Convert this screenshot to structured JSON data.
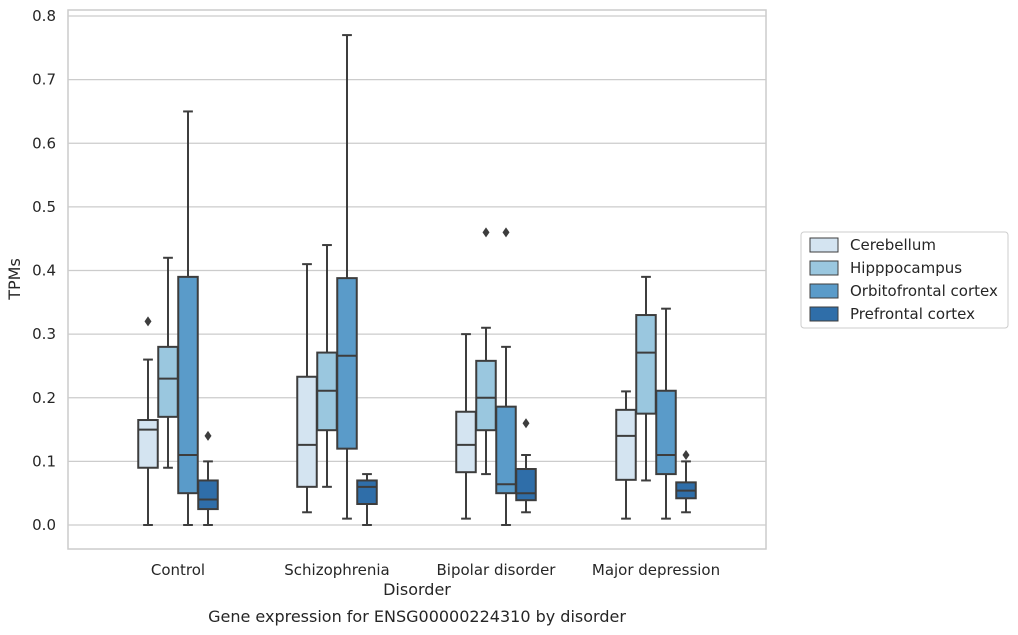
{
  "chart_data": {
    "type": "box",
    "title": "",
    "caption": "Gene expression for ENSG00000224310 by disorder",
    "xlabel": "Disorder",
    "ylabel": "TPMs",
    "ylim": [
      -0.038,
      0.812
    ],
    "yticks": [
      "0.0",
      "0.1",
      "0.2",
      "0.3",
      "0.4",
      "0.5",
      "0.6",
      "0.7",
      "0.8"
    ],
    "grid": "horizontal",
    "legend_position": "right",
    "categories": [
      "Control",
      "Schizophrenia",
      "Bipolar disorder",
      "Major depression"
    ],
    "series": [
      {
        "name": "Cerebellum",
        "color": "#d4e4f1",
        "boxes": [
          {
            "min": 0.0,
            "q1": 0.09,
            "median": 0.15,
            "q3": 0.165,
            "max": 0.26,
            "outliers": [
              0.32
            ]
          },
          {
            "min": 0.02,
            "q1": 0.06,
            "median": 0.126,
            "q3": 0.233,
            "max": 0.41,
            "outliers": []
          },
          {
            "min": 0.01,
            "q1": 0.083,
            "median": 0.126,
            "q3": 0.178,
            "max": 0.3,
            "outliers": []
          },
          {
            "min": 0.01,
            "q1": 0.071,
            "median": 0.14,
            "q3": 0.181,
            "max": 0.21,
            "outliers": []
          }
        ]
      },
      {
        "name": "Hipppocampus",
        "color": "#9ac7df",
        "boxes": [
          {
            "min": 0.09,
            "q1": 0.17,
            "median": 0.23,
            "q3": 0.28,
            "max": 0.42,
            "outliers": []
          },
          {
            "min": 0.06,
            "q1": 0.149,
            "median": 0.211,
            "q3": 0.271,
            "max": 0.44,
            "outliers": []
          },
          {
            "min": 0.08,
            "q1": 0.149,
            "median": 0.2,
            "q3": 0.258,
            "max": 0.31,
            "outliers": [
              0.46
            ]
          },
          {
            "min": 0.07,
            "q1": 0.175,
            "median": 0.271,
            "q3": 0.33,
            "max": 0.39,
            "outliers": []
          }
        ]
      },
      {
        "name": "Orbitofrontal cortex",
        "color": "#5a9bc9",
        "boxes": [
          {
            "min": 0.0,
            "q1": 0.05,
            "median": 0.11,
            "q3": 0.39,
            "max": 0.65,
            "outliers": []
          },
          {
            "min": 0.01,
            "q1": 0.12,
            "median": 0.266,
            "q3": 0.388,
            "max": 0.77,
            "outliers": []
          },
          {
            "min": 0.0,
            "q1": 0.05,
            "median": 0.064,
            "q3": 0.186,
            "max": 0.28,
            "outliers": [
              0.46
            ]
          },
          {
            "min": 0.01,
            "q1": 0.08,
            "median": 0.11,
            "q3": 0.211,
            "max": 0.34,
            "outliers": []
          }
        ]
      },
      {
        "name": "Prefrontal cortex",
        "color": "#2f6ea9",
        "boxes": [
          {
            "min": 0.0,
            "q1": 0.025,
            "median": 0.04,
            "q3": 0.07,
            "max": 0.1,
            "outliers": [
              0.14
            ]
          },
          {
            "min": 0.0,
            "q1": 0.033,
            "median": 0.06,
            "q3": 0.07,
            "max": 0.08,
            "outliers": []
          },
          {
            "min": 0.02,
            "q1": 0.039,
            "median": 0.05,
            "q3": 0.088,
            "max": 0.11,
            "outliers": [
              0.16
            ]
          },
          {
            "min": 0.02,
            "q1": 0.042,
            "median": 0.054,
            "q3": 0.067,
            "max": 0.1,
            "outliers": [
              0.11
            ]
          }
        ]
      }
    ]
  }
}
